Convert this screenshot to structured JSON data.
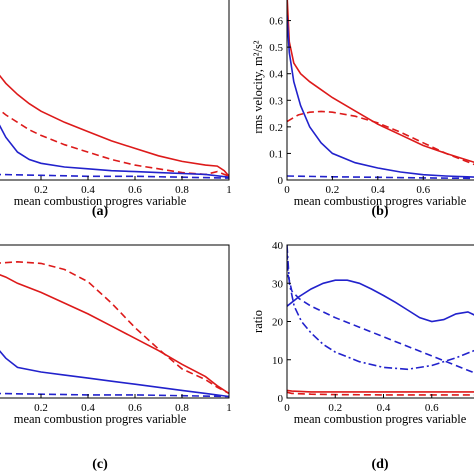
{
  "chart_data": [
    {
      "id": "a",
      "type": "line",
      "panel_label": "(a)",
      "xlabel": "mean combustion progres variable",
      "ylabel": "",
      "xlim": [
        0,
        1
      ],
      "ylim": [
        0,
        1.0
      ],
      "x_ticks": [
        "0.2",
        "0.4",
        "0.6",
        "0.8",
        "1"
      ],
      "y_ticks": [],
      "series": [
        {
          "color": "#dd1a1a",
          "dash": "solid",
          "x": [
            0.0,
            0.05,
            0.1,
            0.15,
            0.2,
            0.3,
            0.4,
            0.5,
            0.6,
            0.7,
            0.8,
            0.9,
            0.95,
            0.98,
            1.0
          ],
          "y": [
            0.6,
            0.52,
            0.46,
            0.41,
            0.37,
            0.31,
            0.26,
            0.21,
            0.17,
            0.13,
            0.1,
            0.08,
            0.075,
            0.05,
            0.02
          ]
        },
        {
          "color": "#dd1a1a",
          "dash": "dashed",
          "x": [
            0.0,
            0.05,
            0.1,
            0.15,
            0.2,
            0.3,
            0.4,
            0.5,
            0.6,
            0.7,
            0.8,
            0.9,
            0.95,
            1.0
          ],
          "y": [
            0.4,
            0.35,
            0.31,
            0.27,
            0.24,
            0.19,
            0.15,
            0.11,
            0.08,
            0.06,
            0.04,
            0.03,
            0.045,
            0.02
          ]
        },
        {
          "color": "#2222cc",
          "dash": "solid",
          "x": [
            0.0,
            0.05,
            0.1,
            0.15,
            0.2,
            0.3,
            0.4,
            0.5,
            0.6,
            0.7,
            0.8,
            0.9,
            1.0
          ],
          "y": [
            0.35,
            0.23,
            0.15,
            0.11,
            0.09,
            0.07,
            0.06,
            0.05,
            0.045,
            0.04,
            0.035,
            0.03,
            0.015
          ]
        },
        {
          "color": "#2222cc",
          "dash": "dashed",
          "x": [
            0.0,
            0.2,
            0.4,
            0.6,
            0.8,
            1.0
          ],
          "y": [
            0.03,
            0.025,
            0.02,
            0.02,
            0.015,
            0.01
          ]
        }
      ]
    },
    {
      "id": "b",
      "type": "line",
      "panel_label": "(b)",
      "xlabel": "mean combustion progres variable",
      "ylabel": "rms velocity, m²/s²",
      "xlim": [
        0,
        0.85
      ],
      "ylim": [
        0,
        0.7
      ],
      "x_ticks": [
        "0",
        "0.2",
        "0.4",
        "0.6"
      ],
      "y_ticks": [
        "0",
        "0.1",
        "0.2",
        "0.3",
        "0.4",
        "0.5",
        "0.6"
      ],
      "series": [
        {
          "color": "#dd1a1a",
          "dash": "solid",
          "x": [
            0.0,
            0.01,
            0.03,
            0.06,
            0.1,
            0.15,
            0.2,
            0.3,
            0.4,
            0.5,
            0.6,
            0.7,
            0.85
          ],
          "y": [
            0.7,
            0.52,
            0.44,
            0.4,
            0.37,
            0.34,
            0.31,
            0.26,
            0.21,
            0.17,
            0.13,
            0.1,
            0.06
          ]
        },
        {
          "color": "#dd1a1a",
          "dash": "dashed",
          "x": [
            0.0,
            0.05,
            0.1,
            0.15,
            0.2,
            0.3,
            0.4,
            0.5,
            0.6,
            0.7,
            0.85
          ],
          "y": [
            0.22,
            0.245,
            0.255,
            0.258,
            0.255,
            0.24,
            0.215,
            0.18,
            0.14,
            0.1,
            0.05
          ]
        },
        {
          "color": "#2222cc",
          "dash": "solid",
          "x": [
            0.0,
            0.01,
            0.03,
            0.06,
            0.1,
            0.15,
            0.2,
            0.3,
            0.4,
            0.5,
            0.6,
            0.7,
            0.85
          ],
          "y": [
            0.62,
            0.48,
            0.37,
            0.28,
            0.2,
            0.14,
            0.1,
            0.065,
            0.045,
            0.03,
            0.02,
            0.015,
            0.01
          ]
        },
        {
          "color": "#2222cc",
          "dash": "dashed",
          "x": [
            0.0,
            0.2,
            0.4,
            0.6,
            0.85
          ],
          "y": [
            0.015,
            0.012,
            0.01,
            0.008,
            0.006
          ]
        }
      ]
    },
    {
      "id": "c",
      "type": "line",
      "panel_label": "(c)",
      "xlabel": "mean combustion progres variable",
      "ylabel": "",
      "xlim": [
        0,
        1
      ],
      "ylim": [
        0,
        1.0
      ],
      "x_ticks": [
        "0.2",
        "0.4",
        "0.6",
        "0.8",
        "1"
      ],
      "y_ticks": [],
      "series": [
        {
          "color": "#dd1a1a",
          "dash": "solid",
          "x": [
            0.0,
            0.05,
            0.1,
            0.2,
            0.3,
            0.4,
            0.5,
            0.6,
            0.7,
            0.8,
            0.9,
            0.95,
            1.0
          ],
          "y": [
            0.82,
            0.79,
            0.75,
            0.69,
            0.62,
            0.55,
            0.47,
            0.39,
            0.31,
            0.22,
            0.14,
            0.08,
            0.03
          ]
        },
        {
          "color": "#dd1a1a",
          "dash": "dashed",
          "x": [
            0.0,
            0.1,
            0.2,
            0.3,
            0.4,
            0.5,
            0.6,
            0.7,
            0.8,
            0.9,
            0.95,
            1.0
          ],
          "y": [
            0.88,
            0.89,
            0.88,
            0.84,
            0.76,
            0.62,
            0.46,
            0.32,
            0.19,
            0.12,
            0.07,
            0.03
          ]
        },
        {
          "color": "#2222cc",
          "dash": "solid",
          "x": [
            0.0,
            0.05,
            0.1,
            0.2,
            0.3,
            0.4,
            0.5,
            0.6,
            0.7,
            0.8,
            0.9,
            1.0
          ],
          "y": [
            0.35,
            0.26,
            0.2,
            0.17,
            0.15,
            0.13,
            0.11,
            0.09,
            0.07,
            0.05,
            0.03,
            0.01
          ]
        },
        {
          "color": "#2222cc",
          "dash": "dashed",
          "x": [
            0.0,
            0.2,
            0.4,
            0.6,
            0.8,
            1.0
          ],
          "y": [
            0.03,
            0.025,
            0.02,
            0.02,
            0.015,
            0.01
          ]
        }
      ]
    },
    {
      "id": "d",
      "type": "line",
      "panel_label": "(d)",
      "xlabel": "mean combustion progres variable",
      "ylabel": "ratio",
      "xlim": [
        0,
        0.8
      ],
      "ylim": [
        0,
        40
      ],
      "x_ticks": [
        "0",
        "0.2",
        "0.4",
        "0.6"
      ],
      "y_ticks": [
        "0",
        "10",
        "20",
        "30",
        "40"
      ],
      "series": [
        {
          "color": "#2222cc",
          "dash": "solid",
          "x": [
            0.0,
            0.05,
            0.1,
            0.15,
            0.2,
            0.25,
            0.3,
            0.35,
            0.4,
            0.45,
            0.5,
            0.55,
            0.6,
            0.65,
            0.7,
            0.75,
            0.8
          ],
          "y": [
            24,
            26.5,
            28.5,
            30,
            30.8,
            30.8,
            30,
            28.5,
            26.8,
            25,
            23,
            21,
            20,
            20.5,
            22,
            22.5,
            21
          ]
        },
        {
          "color": "#2222cc",
          "dash": "dashed",
          "x": [
            0.0,
            0.005,
            0.02,
            0.05,
            0.1,
            0.15,
            0.2,
            0.3,
            0.4,
            0.5,
            0.6,
            0.7,
            0.8
          ],
          "y": [
            38,
            32,
            28,
            26,
            24,
            22.5,
            21,
            18.5,
            16,
            13.5,
            11,
            8.5,
            6
          ]
        },
        {
          "color": "#2222cc",
          "dash": "dashdot",
          "x": [
            0.0,
            0.01,
            0.03,
            0.06,
            0.1,
            0.15,
            0.2,
            0.3,
            0.4,
            0.5,
            0.6,
            0.7,
            0.8
          ],
          "y": [
            40,
            30,
            24,
            20,
            17,
            14,
            12,
            9.5,
            8,
            7.5,
            8.5,
            10.5,
            13
          ]
        },
        {
          "color": "#dd1a1a",
          "dash": "solid",
          "x": [
            0.0,
            0.02,
            0.1,
            0.2,
            0.4,
            0.6,
            0.8
          ],
          "y": [
            2.0,
            1.8,
            1.6,
            1.6,
            1.6,
            1.6,
            1.6
          ]
        },
        {
          "color": "#dd1a1a",
          "dash": "dashed",
          "x": [
            0.0,
            0.02,
            0.1,
            0.2,
            0.4,
            0.6,
            0.8
          ],
          "y": [
            1.5,
            1.2,
            1.0,
            0.9,
            0.8,
            0.8,
            0.8
          ]
        }
      ]
    }
  ]
}
